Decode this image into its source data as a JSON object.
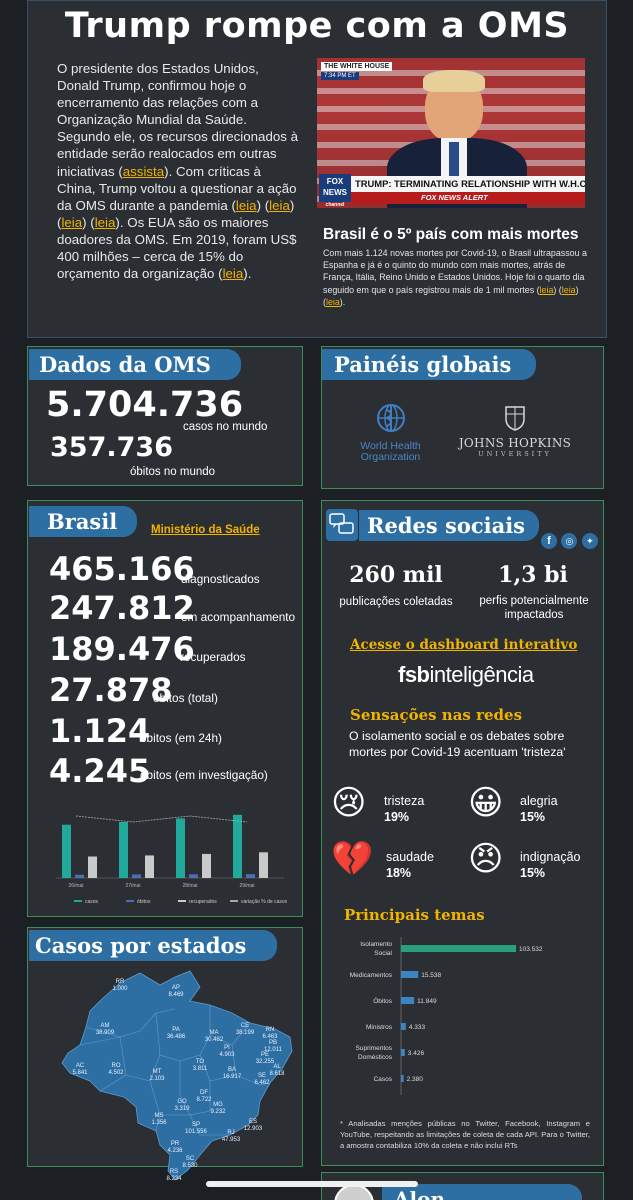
{
  "header": {
    "title": "Trump rompe com a OMS",
    "intro_parts": [
      "O presidente dos Estados Unidos, Donald Trump, confirmou hoje o encerramento das relações com a Organização Mundial da Saúde. Segundo ele, os recursos direcionados à entidade serão realocados em outras iniciativas (",
      "assista",
      "). Com críticas à China, Trump voltou a questionar a ação da OMS durante a pandemia (",
      "leia",
      ") (",
      "leia",
      ") (",
      "leia",
      ") (",
      "leia",
      "). Os EUA são os maiores doadores da OMS. Em 2019, foram US$ 400 milhões – cerca de 15% do orçamento da organização (",
      "leia",
      ")."
    ],
    "video": {
      "top_label": "THE WHITE HOUSE",
      "time": "7:34 PM ET",
      "network": "FOX NEWS",
      "network_sub": "channel",
      "chyron": "TRUMP: TERMINATING RELATIONSHIP WITH W.H.O.",
      "alert": "FOX NEWS ALERT"
    },
    "brasil_headline": "Brasil é o 5º país com mais mortes",
    "brasil_text": "Com mais 1.124 novas mortes por Covid-19, o Brasil ultrapassou a Espanha e já é o quinto do mundo com mais mortes, atrás de França, Itália, Reino Unido e Estados Unidos. Hoje foi o quarto dia seguido em que o país registrou mais de 1 mil mortes (",
    "brasil_links": [
      "leia",
      "leia",
      "leia"
    ],
    "brasil_end": ")."
  },
  "oms": {
    "tab": "Dados da OMS",
    "cases": "5.704.736",
    "cases_label": "casos no mundo",
    "deaths": "357.736",
    "deaths_label": "óbitos no mundo"
  },
  "paineis": {
    "tab": "Painéis globais",
    "who_line1": "World Health",
    "who_line2": "Organization",
    "jh_line1": "JOHNS HOPKINS",
    "jh_line2": "UNIVERSITY"
  },
  "brasil": {
    "tab": "Brasil",
    "source": "Ministério da Saúde",
    "stats": [
      {
        "value": "465.166",
        "label": "diagnosticados"
      },
      {
        "value": "247.812",
        "label": "em acompanhamento"
      },
      {
        "value": "189.476",
        "label": "recuperados"
      },
      {
        "value": "27.878",
        "label": "óbitos (total)"
      },
      {
        "value": "1.124",
        "label": "óbitos (em 24h)"
      },
      {
        "value": "4.245",
        "label": "óbitos (em investigação)"
      }
    ]
  },
  "chart_data": {
    "type": "bar",
    "categories": [
      "26/mai",
      "27/mai",
      "28/mai",
      "29/mai"
    ],
    "series": [
      {
        "name": "casos",
        "values": [
          392,
          412,
          438,
          465
        ],
        "color": "#21a99c"
      },
      {
        "name": "óbitos",
        "values": [
          24,
          26,
          27,
          28
        ],
        "color": "#4a6fb5"
      },
      {
        "name": "recuperados",
        "values": [
          158,
          166,
          177,
          189
        ],
        "color": "#c9c9c9"
      }
    ],
    "line_series": {
      "name": "variação % de casos",
      "color": "#aaaaaa"
    },
    "ylim": [
      0,
      500
    ]
  },
  "redes": {
    "tab": "Redes sociais",
    "pubs_value": "260 mil",
    "pubs_label": "publicações coletadas",
    "perfis_value": "1,3 bi",
    "perfis_label": "perfis potencialmente impactados",
    "dashboard_link": "Acesse o dashboard interativo",
    "brand_bold": "fsb",
    "brand_rest": "inteligência",
    "sensacoes_title": "Sensações nas redes",
    "sensacoes_text": "O isolamento social e os debates sobre mortes por Covid-19 acentuam 'tristeza'",
    "feelings": [
      {
        "emoji": "😢",
        "label": "tristeza",
        "pct": "19%"
      },
      {
        "emoji": "😀",
        "label": "alegria",
        "pct": "15%"
      },
      {
        "emoji": "💔",
        "label": "saudade",
        "pct": "18%"
      },
      {
        "emoji": "😠",
        "label": "indignação",
        "pct": "15%"
      }
    ],
    "temas_title": "Principais temas",
    "temas": [
      {
        "label": "Isolamento Social",
        "value": 103532,
        "display": "103.532"
      },
      {
        "label": "Medicamentos",
        "value": 15538,
        "display": "15.538"
      },
      {
        "label": "Óbitos",
        "value": 11849,
        "display": "11.849"
      },
      {
        "label": "Ministros",
        "value": 4333,
        "display": "4.333"
      },
      {
        "label": "Suprimentos Domésticos",
        "value": 3426,
        "display": "3.426"
      },
      {
        "label": "Casos",
        "value": 2380,
        "display": "2.380"
      }
    ],
    "footnote": "* Analisadas menções públicas no Twitter, Facebook, Instagram e YouTube, respeitando as limitações de coleta de cada API. Para o Twitter, a amostra contabiliza 10% da coleta e não inclui RTs"
  },
  "estados": {
    "tab": "Casos por estados",
    "states": [
      {
        "uf": "RR",
        "value": "1.000"
      },
      {
        "uf": "AP",
        "value": "8.469"
      },
      {
        "uf": "AM",
        "value": "38.909"
      },
      {
        "uf": "PA",
        "value": "36.486"
      },
      {
        "uf": "MA",
        "value": "30.482"
      },
      {
        "uf": "CE",
        "value": "38.199"
      },
      {
        "uf": "RN",
        "value": "6.463"
      },
      {
        "uf": "PB",
        "value": "12.011"
      },
      {
        "uf": "PE",
        "value": "32.255"
      },
      {
        "uf": "AL",
        "value": "8.618"
      },
      {
        "uf": "SE",
        "value": "6.462"
      },
      {
        "uf": "PI",
        "value": "4.903"
      },
      {
        "uf": "AC",
        "value": "5.841"
      },
      {
        "uf": "RO",
        "value": "4.502"
      },
      {
        "uf": "TO",
        "value": "3.811"
      },
      {
        "uf": "BA",
        "value": "16.917"
      },
      {
        "uf": "MT",
        "value": "2.103"
      },
      {
        "uf": "DF",
        "value": "8.722"
      },
      {
        "uf": "GO",
        "value": "3.319"
      },
      {
        "uf": "MG",
        "value": "9.232"
      },
      {
        "uf": "ES",
        "value": "12.903"
      },
      {
        "uf": "MS",
        "value": "1.356"
      },
      {
        "uf": "SP",
        "value": "101.556"
      },
      {
        "uf": "RJ",
        "value": "47.953"
      },
      {
        "uf": "PR",
        "value": "4.236"
      },
      {
        "uf": "SC",
        "value": "8.530"
      },
      {
        "uf": "RS",
        "value": "8.234"
      }
    ]
  },
  "footer": {
    "author": "Alon Feuerwerker"
  }
}
